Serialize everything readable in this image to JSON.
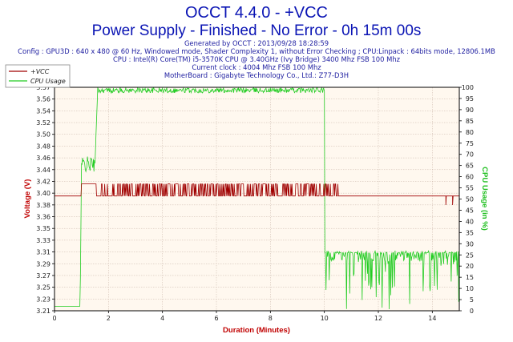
{
  "header": {
    "title_line1": "OCCT 4.4.0 - +VCC",
    "title_line2": "Power Supply - Finished - No Error - 0h 15m 00s",
    "info_lines": [
      "Generated by OCCT : 2013/09/28 18:28:59",
      "Config : GPU3D : 640 x 480 @ 60 Hz, Windowed mode, Shader Complexity 1, without Error Checking ; CPU:Linpack : 64bits mode, 12806.1MB",
      "CPU : Intel(R) Core(TM) i5-3570K CPU @ 3.40GHz (Ivy Bridge) 3400 Mhz FSB 100 Mhz",
      "Current clock : 4004 Mhz FSB 100 Mhz",
      "MotherBoard : Gigabyte Technology Co., Ltd.: Z77-D3H"
    ]
  },
  "chart_data": {
    "type": "line",
    "title": "OCCT 4.4.0 - +VCC",
    "xlabel": "Duration (Minutes)",
    "ylabel_left": "Voltage (V)",
    "ylabel_right": "CPU Usage (in %)",
    "xlim": [
      0,
      15
    ],
    "x_ticks": [
      0,
      2,
      4,
      6,
      8,
      10,
      12,
      14
    ],
    "ylim_left": [
      3.21,
      3.58
    ],
    "y_ticks_left": [
      "3.21",
      "3.23",
      "3.25",
      "3.27",
      "3.29",
      "3.31",
      "3.33",
      "3.35",
      "3.36",
      "3.38",
      "3.40",
      "3.42",
      "3.44",
      "3.46",
      "3.48",
      "3.50",
      "3.52",
      "3.54",
      "3.56",
      "3.57"
    ],
    "ylim_right": [
      0,
      100
    ],
    "y_ticks_right": [
      0,
      5,
      10,
      15,
      20,
      25,
      30,
      35,
      40,
      45,
      50,
      55,
      60,
      65,
      70,
      75,
      80,
      85,
      90,
      95,
      100
    ],
    "grid": true,
    "legend_position": "top-left",
    "series": [
      {
        "name": "+VCC",
        "axis": "left",
        "color": "#a00000",
        "description": "Idle ~3.40 V, 3.42 V at 1.0-1.5 min, fluctuating 3.40-3.42 V under load 1.5-10.5 min, back to 3.40 V",
        "points": [
          [
            0,
            3.4
          ],
          [
            1.0,
            3.4
          ],
          [
            1.0,
            3.42
          ],
          [
            1.5,
            3.42
          ],
          [
            1.5,
            3.41
          ],
          [
            10.5,
            3.41
          ],
          [
            10.5,
            3.4
          ],
          [
            15,
            3.4
          ]
        ]
      },
      {
        "name": "CPU Usage",
        "axis": "right",
        "color": "#22cc22",
        "description": "~2% idle, ~65% 1.0-1.5 min, ~99% 1.5-10 min, fluctuating ~0-26% after 10 min",
        "points": [
          [
            0,
            2
          ],
          [
            0.95,
            2
          ],
          [
            1.0,
            65
          ],
          [
            1.5,
            66
          ],
          [
            1.6,
            99
          ],
          [
            10.0,
            99
          ],
          [
            10.0,
            26
          ],
          [
            15,
            26
          ]
        ]
      }
    ]
  },
  "colors": {
    "title": "#0a14b4",
    "info": "#1e1ea0",
    "plot_bg": "#fff8ef",
    "grid": "#c8b4a8",
    "vcc": "#a00000",
    "cpu": "#22cc22"
  }
}
